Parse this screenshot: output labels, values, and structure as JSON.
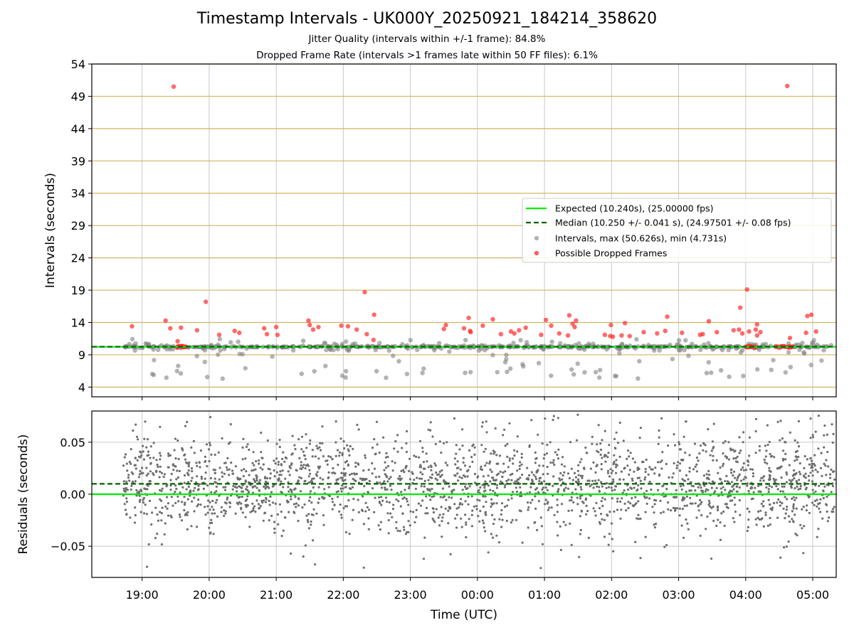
{
  "title": "Timestamp Intervals - UK000Y_20250921_184214_358620",
  "subtitle_jitter": "Jitter Quality (intervals within +/-1 frame): 84.8%",
  "subtitle_dropped": "Dropped Frame Rate (intervals >1 frames late within 50 FF files): 6.1%",
  "colors": {
    "expected": "#00ee00",
    "median": "#006400",
    "intervals": "#808080",
    "dropped": "#ff2a2a",
    "hgrid_top": "#d4b463",
    "grid": "#c8c8c8",
    "residual_dots": "#6e6e6e"
  },
  "chart_data": [
    {
      "type": "scatter",
      "name": "intervals",
      "ylabel": "Intervals (seconds)",
      "ylim": [
        2.5,
        54
      ],
      "yticks": [
        4,
        9,
        14,
        19,
        24,
        29,
        34,
        39,
        44,
        49,
        54
      ],
      "xlim_hours": [
        18.25,
        29.35
      ],
      "expected_interval": 10.24,
      "median_interval": 10.25,
      "legend": {
        "position": "center-right",
        "entries": [
          "Expected (10.240s), (25.00000 fps)",
          "Median (10.250 +/- 0.041 s), (24.97501 +/- 0.08 fps)",
          "Intervals, max (50.626s), min (4.731s)",
          "Possible Dropped Frames"
        ]
      },
      "dropped_frames": [
        [
          18.85,
          13.4
        ],
        [
          19.35,
          14.3
        ],
        [
          19.42,
          13.1
        ],
        [
          19.47,
          50.5
        ],
        [
          19.53,
          11.1
        ],
        [
          19.58,
          13.2
        ],
        [
          19.82,
          12.8
        ],
        [
          19.95,
          17.2
        ],
        [
          20.15,
          12.1
        ],
        [
          20.38,
          12.7
        ],
        [
          20.45,
          12.4
        ],
        [
          20.82,
          13.1
        ],
        [
          20.86,
          12.2
        ],
        [
          21.0,
          13.3
        ],
        [
          21.02,
          12.1
        ],
        [
          21.48,
          14.3
        ],
        [
          21.5,
          13.6
        ],
        [
          21.55,
          12.9
        ],
        [
          21.63,
          13.3
        ],
        [
          21.97,
          13.5
        ],
        [
          22.07,
          13.4
        ],
        [
          22.2,
          12.9
        ],
        [
          22.32,
          18.7
        ],
        [
          22.35,
          12.2
        ],
        [
          22.45,
          11.3
        ],
        [
          22.46,
          15.2
        ],
        [
          23.5,
          13.0
        ],
        [
          23.53,
          13.6
        ],
        [
          23.8,
          13.1
        ],
        [
          23.87,
          14.7
        ],
        [
          23.89,
          12.7
        ],
        [
          23.9,
          12.5
        ],
        [
          24.08,
          13.5
        ],
        [
          24.23,
          14.5
        ],
        [
          24.35,
          12.2
        ],
        [
          24.5,
          12.6
        ],
        [
          24.55,
          12.3
        ],
        [
          24.62,
          12.8
        ],
        [
          24.72,
          13.2
        ],
        [
          24.95,
          12.1
        ],
        [
          25.02,
          14.4
        ],
        [
          25.1,
          13.5
        ],
        [
          25.22,
          12.3
        ],
        [
          25.35,
          12.0
        ],
        [
          25.37,
          15.1
        ],
        [
          25.42,
          13.8
        ],
        [
          25.47,
          14.3
        ],
        [
          25.45,
          13.3
        ],
        [
          25.9,
          12.1
        ],
        [
          25.98,
          11.9
        ],
        [
          25.99,
          13.6
        ],
        [
          26.02,
          11.8
        ],
        [
          26.15,
          12.0
        ],
        [
          26.2,
          13.9
        ],
        [
          26.27,
          11.9
        ],
        [
          26.48,
          12.5
        ],
        [
          26.68,
          12.3
        ],
        [
          26.8,
          12.7
        ],
        [
          26.83,
          14.9
        ],
        [
          27.05,
          12.4
        ],
        [
          27.32,
          12.1
        ],
        [
          27.36,
          12.2
        ],
        [
          27.45,
          14.2
        ],
        [
          27.57,
          12.5
        ],
        [
          27.82,
          12.8
        ],
        [
          27.9,
          12.9
        ],
        [
          27.92,
          16.3
        ],
        [
          27.95,
          12.3
        ],
        [
          28.02,
          19.1
        ],
        [
          28.05,
          12.6
        ],
        [
          28.15,
          12.9
        ],
        [
          28.17,
          12.0
        ],
        [
          28.17,
          13.7
        ],
        [
          28.22,
          12.5
        ],
        [
          28.62,
          50.6
        ],
        [
          28.66,
          11.6
        ],
        [
          28.9,
          12.4
        ],
        [
          28.92,
          15.0
        ],
        [
          28.98,
          15.2
        ],
        [
          29.05,
          12.6
        ]
      ],
      "dropped_clusters": [
        [
          19.5,
          19.65
        ],
        [
          28.0,
          28.15
        ],
        [
          28.45,
          28.7
        ]
      ],
      "dense_band_hours": [
        18.72,
        29.33
      ]
    },
    {
      "type": "scatter",
      "name": "residuals",
      "xlabel": "Time (UTC)",
      "ylabel": "Residuals (seconds)",
      "ylim": [
        -0.08,
        0.08
      ],
      "yticks": [
        -0.05,
        0.0,
        0.05
      ],
      "ytick_labels": [
        "−0.05",
        "0.00",
        "0.05"
      ],
      "expected_line": 0.0,
      "median_line": 0.01,
      "xticks_hours": [
        19,
        20,
        21,
        22,
        23,
        24,
        25,
        26,
        27,
        28,
        29
      ],
      "xtick_labels": [
        "19:00",
        "20:00",
        "21:00",
        "22:00",
        "23:00",
        "00:00",
        "01:00",
        "02:00",
        "03:00",
        "04:00",
        "05:00"
      ]
    }
  ]
}
